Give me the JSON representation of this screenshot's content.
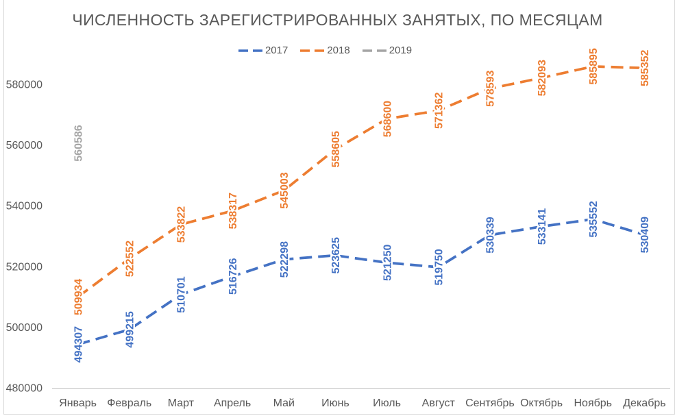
{
  "title": "ЧИСЛЕННОСТЬ ЗАРЕГИСТРИРОВАННЫХ ЗАНЯТЫХ, ПО МЕСЯЦАМ",
  "chart_data": {
    "type": "line",
    "title": "ЧИСЛЕННОСТЬ ЗАРЕГИСТРИРОВАННЫХ ЗАНЯТЫХ, ПО МЕСЯЦАМ",
    "categories": [
      "Январь",
      "Февраль",
      "Март",
      "Апрель",
      "Май",
      "Июнь",
      "Июль",
      "Август",
      "Сентябрь",
      "Октябрь",
      "Ноябрь",
      "Декабрь"
    ],
    "series": [
      {
        "name": "2017",
        "color": "#4472C4",
        "values": [
          494307,
          499215,
          510701,
          516726,
          522298,
          523625,
          521250,
          519750,
          530339,
          533141,
          535552,
          530409
        ]
      },
      {
        "name": "2018",
        "color": "#ED7D31",
        "values": [
          509934,
          522552,
          533822,
          538317,
          545003,
          558605,
          568600,
          571362,
          578593,
          582093,
          585895,
          585352
        ]
      },
      {
        "name": "2019",
        "color": "#A5A5A5",
        "values": [
          560586,
          null,
          null,
          null,
          null,
          null,
          null,
          null,
          null,
          null,
          null,
          null
        ]
      }
    ],
    "y_ticks": [
      480000,
      500000,
      520000,
      540000,
      560000,
      580000
    ],
    "ylim": [
      480000,
      590000
    ],
    "grid": false,
    "legend_position": "top",
    "data_labels": true,
    "data_label_rotation": 90,
    "line_style": "dashed"
  },
  "colors": {
    "title_text": "#595959",
    "axis_text": "#595959",
    "axis_line": "#BFBFBF",
    "frame": "#D9D9D9"
  }
}
